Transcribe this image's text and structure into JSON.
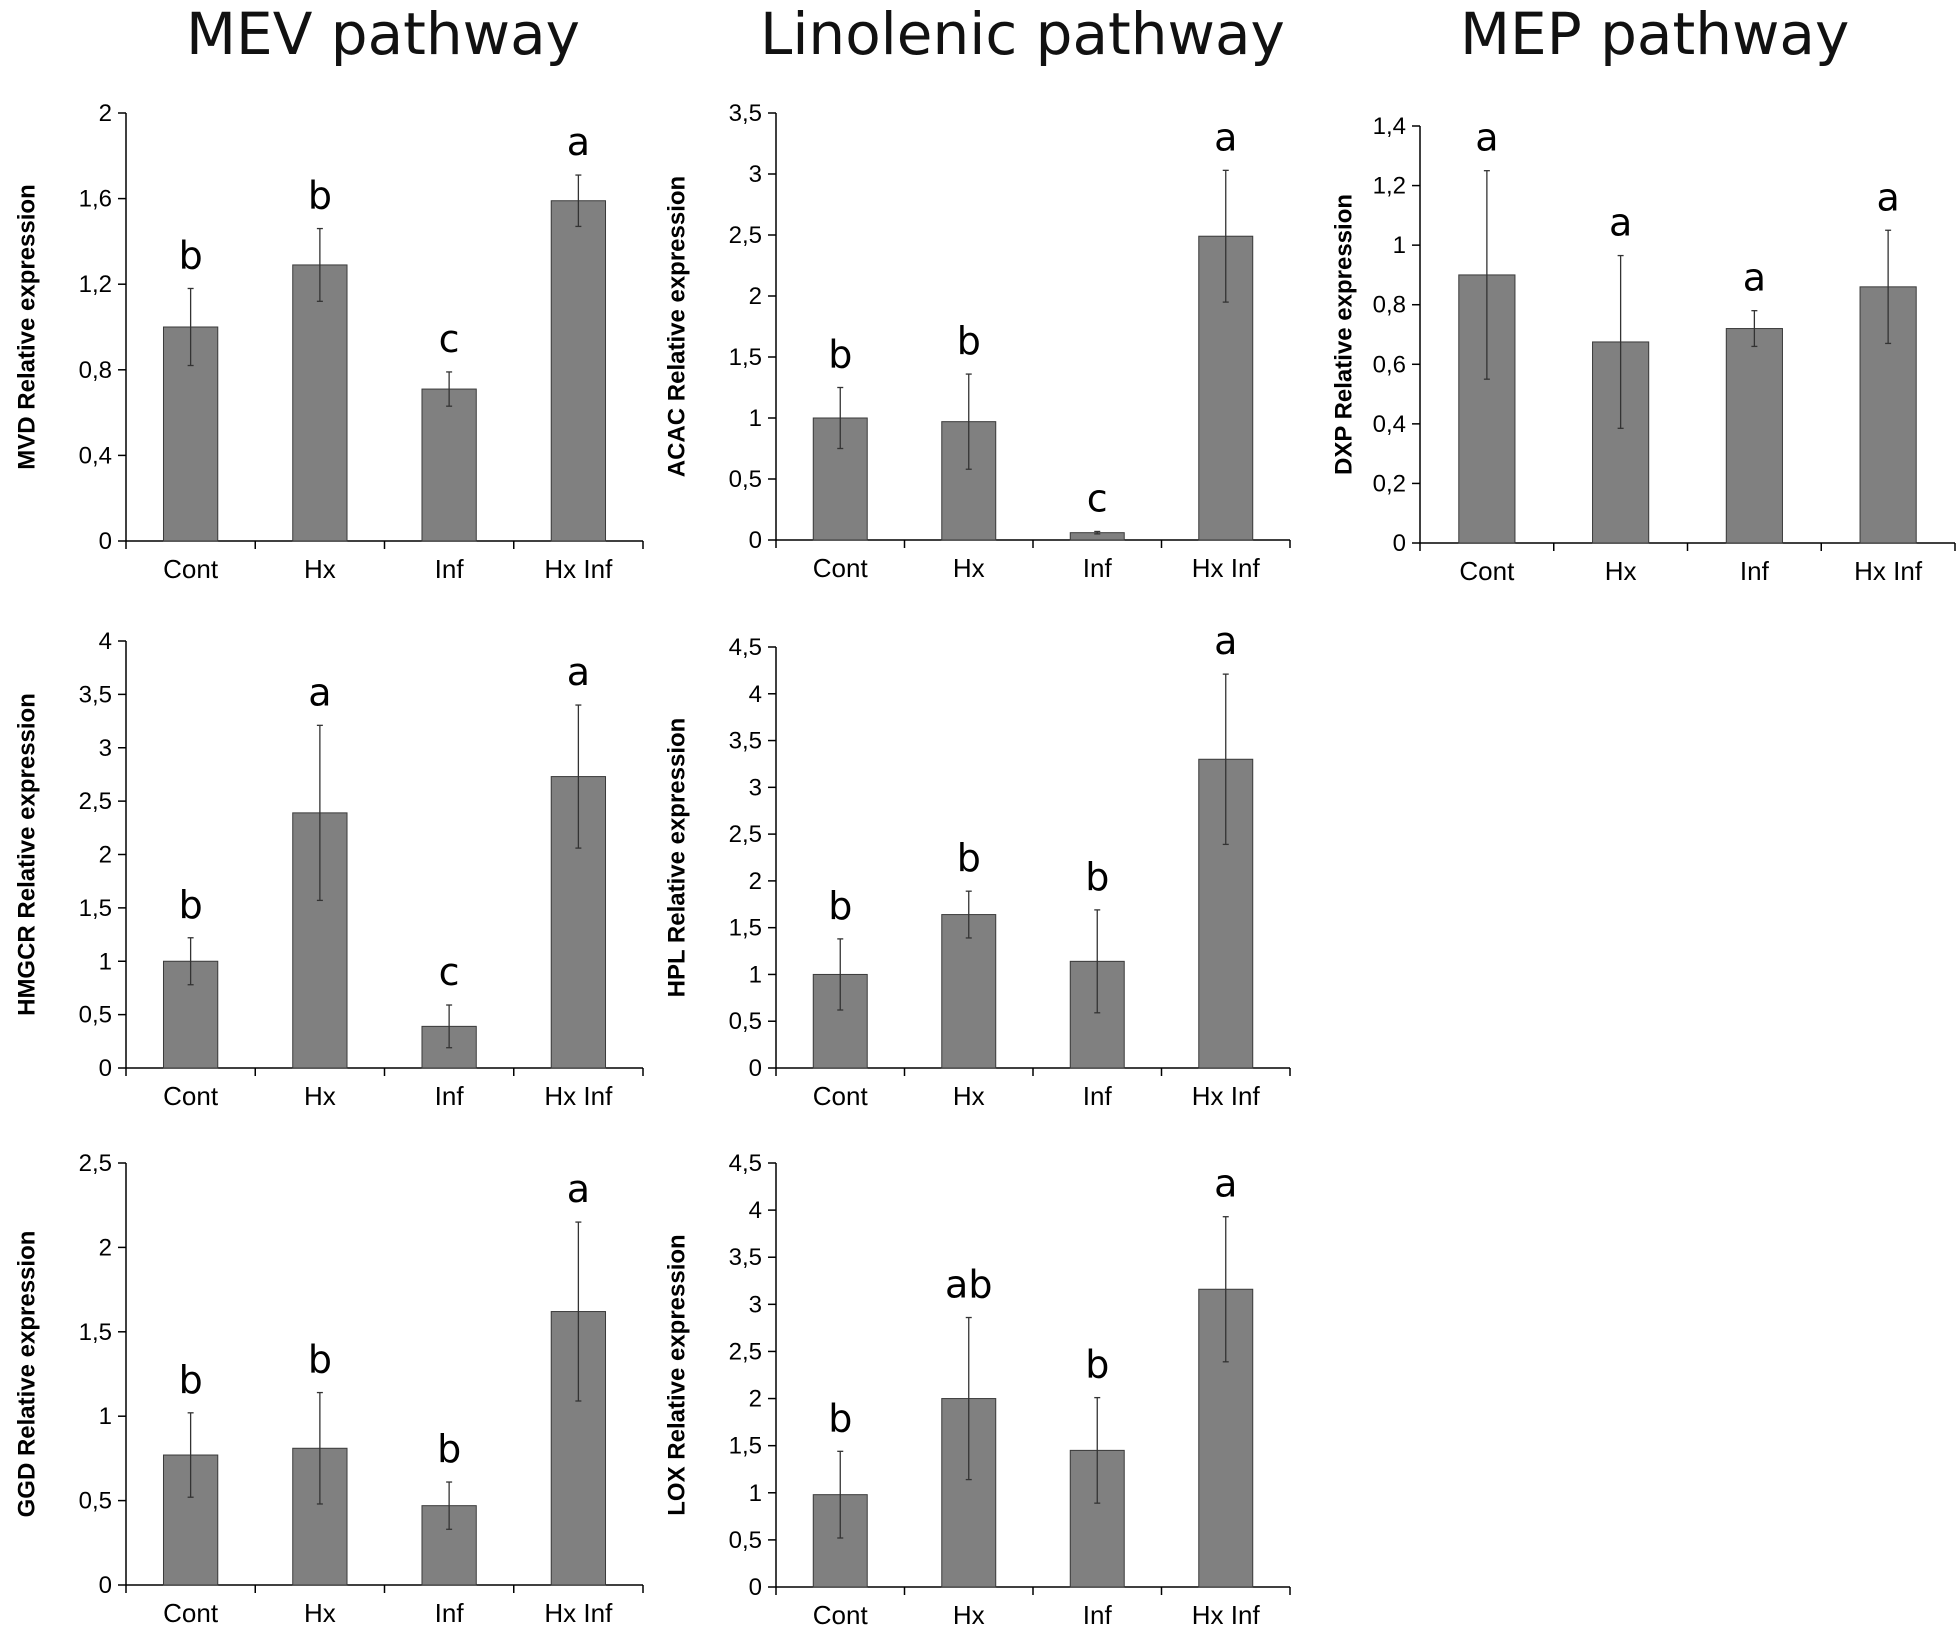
{
  "columns": {
    "mev": "MEV pathway",
    "linolenic": "Linolenic pathway",
    "mep": "MEP pathway"
  },
  "colors": {
    "bar": "#808080",
    "bar_stroke": "#3a3a3a",
    "axis": "#000000"
  },
  "chart_data": [
    {
      "id": "mvd",
      "type": "bar",
      "ylabel": "MVD Relative expression",
      "categories": [
        "Cont",
        "Hx",
        "Inf",
        "Hx Inf"
      ],
      "values": [
        1.0,
        1.29,
        0.71,
        1.59
      ],
      "errors": [
        0.18,
        0.17,
        0.08,
        0.12
      ],
      "letters": [
        "b",
        "b",
        "c",
        "a"
      ],
      "ylim": [
        0,
        2
      ],
      "ticks": [
        0,
        0.4,
        0.8,
        1.2,
        1.6,
        2
      ],
      "tick_labels": [
        "0",
        "0,4",
        "0,8",
        "1,2",
        "1,6",
        "2"
      ]
    },
    {
      "id": "acac",
      "type": "bar",
      "ylabel": "ACAC Relative expression",
      "categories": [
        "Cont",
        "Hx",
        "Inf",
        "Hx Inf"
      ],
      "values": [
        1.0,
        0.97,
        0.06,
        2.49
      ],
      "errors": [
        0.25,
        0.39,
        0.01,
        0.54
      ],
      "letters": [
        "b",
        "b",
        "c",
        "a"
      ],
      "ylim": [
        0,
        3.5
      ],
      "ticks": [
        0,
        0.5,
        1,
        1.5,
        2,
        2.5,
        3,
        3.5
      ],
      "tick_labels": [
        "0",
        "0,5",
        "1",
        "1,5",
        "2",
        "2,5",
        "3",
        "3,5"
      ]
    },
    {
      "id": "dxp",
      "type": "bar",
      "ylabel": "DXP Relative expression",
      "categories": [
        "Cont",
        "Hx",
        "Inf",
        "Hx Inf"
      ],
      "values": [
        0.9,
        0.675,
        0.72,
        0.86
      ],
      "errors": [
        0.35,
        0.29,
        0.06,
        0.19
      ],
      "letters": [
        "a",
        "a",
        "a",
        "a"
      ],
      "ylim": [
        0,
        1.4
      ],
      "ticks": [
        0,
        0.2,
        0.4,
        0.6,
        0.8,
        1,
        1.2,
        1.4
      ],
      "tick_labels": [
        "0",
        "0,2",
        "0,4",
        "0,6",
        "0,8",
        "1",
        "1,2",
        "1,4"
      ]
    },
    {
      "id": "hmgcr",
      "type": "bar",
      "ylabel": "HMGCR Relative expression",
      "categories": [
        "Cont",
        "Hx",
        "Inf",
        "Hx Inf"
      ],
      "values": [
        1.0,
        2.39,
        0.39,
        2.73
      ],
      "errors": [
        0.22,
        0.82,
        0.2,
        0.67
      ],
      "letters": [
        "b",
        "a",
        "c",
        "a"
      ],
      "ylim": [
        0,
        4
      ],
      "ticks": [
        0,
        0.5,
        1,
        1.5,
        2,
        2.5,
        3,
        3.5,
        4
      ],
      "tick_labels": [
        "0",
        "0,5",
        "1",
        "1,5",
        "2",
        "2,5",
        "3",
        "3,5",
        "4"
      ]
    },
    {
      "id": "hpl",
      "type": "bar",
      "ylabel": "HPL Relative expression",
      "categories": [
        "Cont",
        "Hx",
        "Inf",
        "Hx Inf"
      ],
      "values": [
        1.0,
        1.64,
        1.14,
        3.3
      ],
      "errors": [
        0.38,
        0.25,
        0.55,
        0.91
      ],
      "letters": [
        "b",
        "b",
        "b",
        "a"
      ],
      "ylim": [
        0,
        4.5
      ],
      "ticks": [
        0,
        0.5,
        1,
        1.5,
        2,
        2.5,
        3,
        3.5,
        4,
        4.5
      ],
      "tick_labels": [
        "0",
        "0,5",
        "1",
        "1,5",
        "2",
        "2,5",
        "3",
        "3,5",
        "4",
        "4,5"
      ]
    },
    {
      "id": "ggd",
      "type": "bar",
      "ylabel": "GGD Relative expression",
      "categories": [
        "Cont",
        "Hx",
        "Inf",
        "Hx Inf"
      ],
      "values": [
        0.77,
        0.81,
        0.47,
        1.62
      ],
      "errors": [
        0.25,
        0.33,
        0.14,
        0.53
      ],
      "letters": [
        "b",
        "b",
        "b",
        "a"
      ],
      "ylim": [
        0,
        2.5
      ],
      "ticks": [
        0,
        0.5,
        1,
        1.5,
        2,
        2.5
      ],
      "tick_labels": [
        "0",
        "0,5",
        "1",
        "1,5",
        "2",
        "2,5"
      ]
    },
    {
      "id": "lox",
      "type": "bar",
      "ylabel": "LOX  Relative expression",
      "categories": [
        "Cont",
        "Hx",
        "Inf",
        "Hx Inf"
      ],
      "values": [
        0.98,
        2.0,
        1.45,
        3.16
      ],
      "errors": [
        0.46,
        0.86,
        0.56,
        0.77
      ],
      "letters": [
        "b",
        "ab",
        "b",
        "a"
      ],
      "ylim": [
        0,
        4.5
      ],
      "ticks": [
        0,
        0.5,
        1,
        1.5,
        2,
        2.5,
        3,
        3.5,
        4,
        4.5
      ],
      "tick_labels": [
        "0",
        "0,5",
        "1",
        "1,5",
        "2",
        "2,5",
        "3",
        "3,5",
        "4",
        "4,5"
      ]
    }
  ]
}
